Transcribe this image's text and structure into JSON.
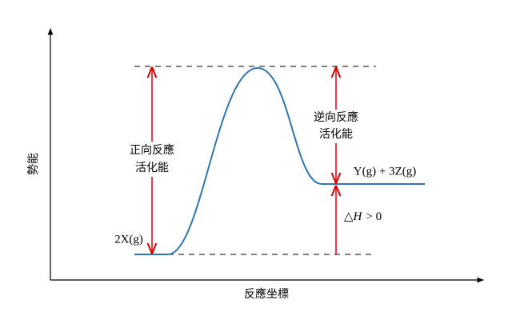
{
  "axes": {
    "y_label": "勢能",
    "x_label": "反應坐標"
  },
  "forward": {
    "line1": "正向反應",
    "line2": "活化能"
  },
  "reverse": {
    "line1": "逆向反應",
    "line2": "活化能"
  },
  "reactant": "2X(g)",
  "product": "Y(g) + 3Z(g)",
  "delta_h": {
    "symbol": "△",
    "variable": "H",
    "relation": "> 0"
  }
}
